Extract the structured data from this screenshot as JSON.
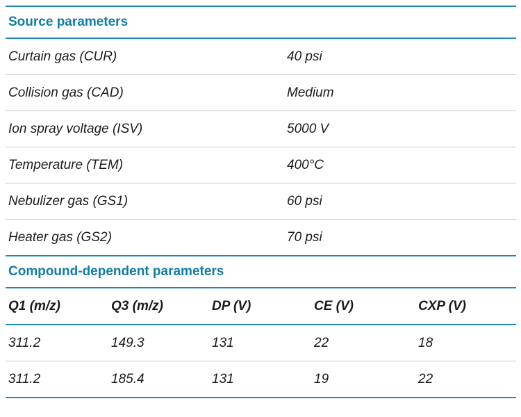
{
  "theme": {
    "accent_text": "#0f7ea6",
    "accent_line": "#1f85b5",
    "divider": "#c9c9c9",
    "text": "#1b1b1b"
  },
  "source_section": {
    "title": "Source parameters",
    "rows": [
      {
        "label": "Curtain gas (CUR)",
        "value": "40 psi"
      },
      {
        "label": "Collision gas (CAD)",
        "value": "Medium"
      },
      {
        "label": "Ion spray voltage (ISV)",
        "value": "5000 V"
      },
      {
        "label": "Temperature (TEM)",
        "value": "400°C"
      },
      {
        "label": "Nebulizer gas (GS1)",
        "value": "60 psi"
      },
      {
        "label": "Heater gas (GS2)",
        "value": "70 psi"
      }
    ]
  },
  "compound_section": {
    "title": "Compound-dependent parameters",
    "columns": [
      "Q1 (m/z)",
      "Q3 (m/z)",
      "DP (V)",
      "CE (V)",
      "CXP (V)"
    ],
    "rows": [
      [
        "311.2",
        "149.3",
        "131",
        "22",
        "18"
      ],
      [
        "311.2",
        "185.4",
        "131",
        "19",
        "22"
      ]
    ]
  }
}
